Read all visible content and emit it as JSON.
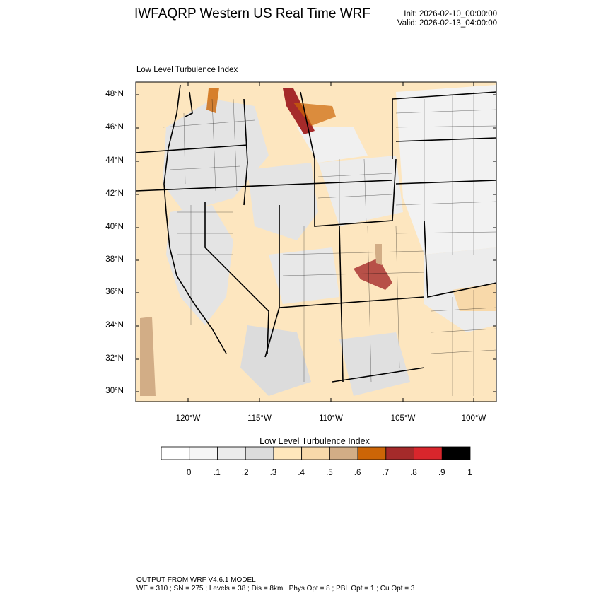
{
  "header": {
    "title": "IWFAQRP Western US Real Time WRF",
    "init": "Init: 2026-02-10_00:00:00",
    "valid": "Valid: 2026-02-13_04:00:00"
  },
  "map": {
    "title": "Low Level Turbulence Index",
    "lat_labels": [
      "48°N",
      "46°N",
      "44°N",
      "42°N",
      "40°N",
      "38°N",
      "36°N",
      "34°N",
      "32°N",
      "30°N"
    ],
    "lon_labels": [
      "120°W",
      "115°W",
      "110°W",
      "105°W",
      "100°W"
    ],
    "background_color": "#fde6bf"
  },
  "colorbar": {
    "title": "Low Level Turbulence Index",
    "colors": [
      "#ffffff",
      "#f6f6f6",
      "#ececec",
      "#dcdcdc",
      "#ffe7bc",
      "#f8d9aa",
      "#d2ad86",
      "#cc6506",
      "#a52a2a",
      "#d8262c",
      "#000000"
    ],
    "labels": [
      "0",
      ".1",
      ".2",
      ".3",
      ".4",
      ".5",
      ".6",
      ".7",
      ".8",
      ".9",
      "1"
    ]
  },
  "footer": {
    "line1": "OUTPUT FROM WRF V4.6.1 MODEL",
    "line2": "WE = 310 ; SN = 275 ; Levels = 38 ; Dis = 8km ; Phys Opt = 8 ; PBL Opt = 1 ; Cu Opt = 3"
  }
}
